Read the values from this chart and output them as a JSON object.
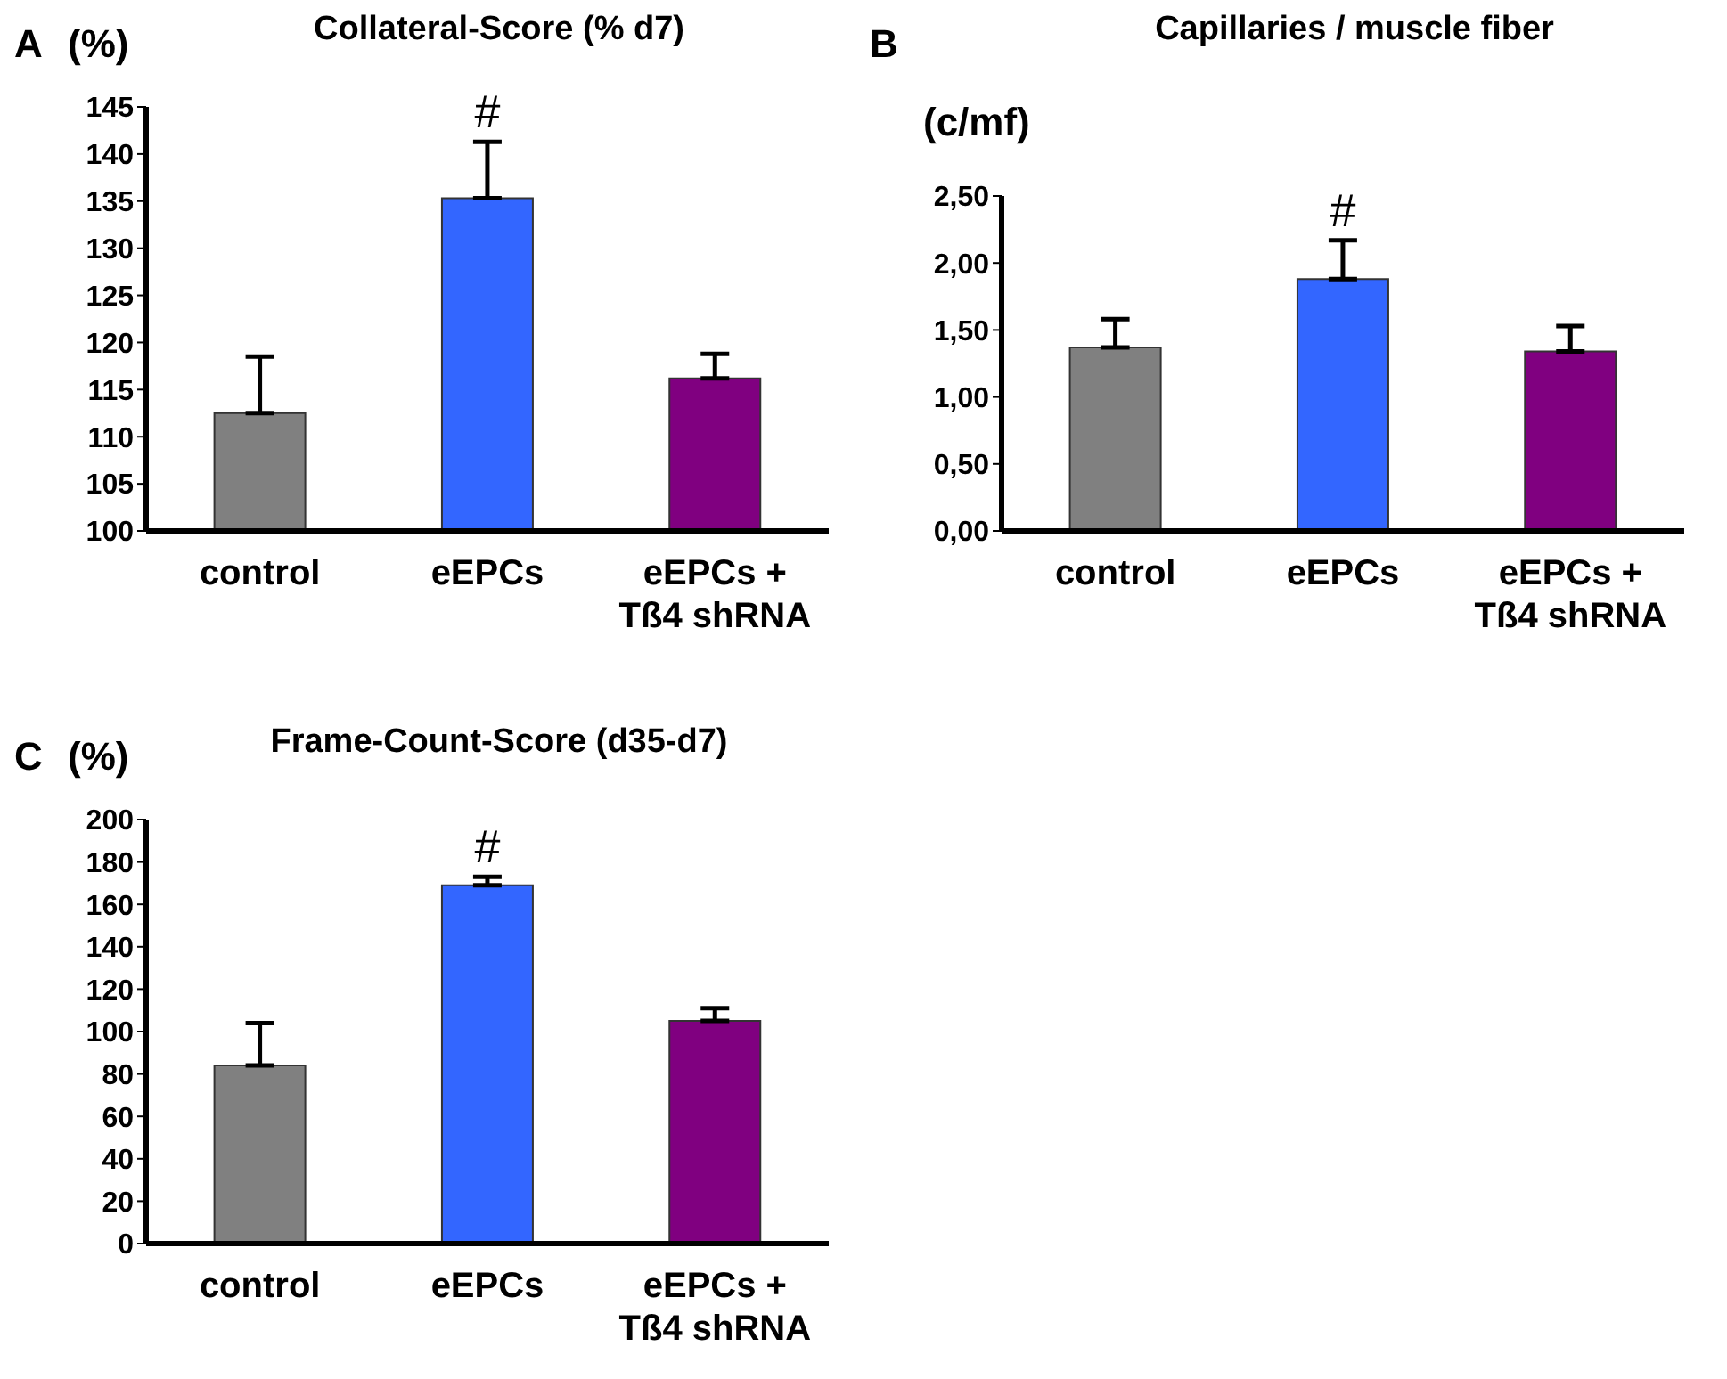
{
  "chart_data": [
    {
      "type": "bar",
      "title": "Collateral-Score (% d7)",
      "ylabel": "(%)",
      "categories": [
        "control",
        "eEPCs",
        "eEPCs + Tß4 shRNA"
      ],
      "values": [
        112.5,
        135.3,
        116.2
      ],
      "errors": [
        6,
        6,
        2.6
      ],
      "colors": [
        "#808080",
        "#3366ff",
        "#800080"
      ],
      "ylim": [
        100,
        145
      ],
      "yticks": [
        100,
        105,
        110,
        115,
        120,
        125,
        130,
        135,
        140,
        145
      ],
      "annotations": [
        "A",
        {
          "text": "#",
          "x": "eEPCs",
          "y": 141.3
        }
      ]
    },
    {
      "type": "bar",
      "title": "Capillaries / muscle fiber",
      "ylabel": "(c/mf)",
      "categories": [
        "control",
        "eEPCs",
        "eEPCs + Tß4 shRNA"
      ],
      "values": [
        1.37,
        1.88,
        1.34
      ],
      "errors": [
        0.21,
        0.29,
        0.19
      ],
      "colors": [
        "#808080",
        "#3366ff",
        "#800080"
      ],
      "ylim": [
        0,
        2.5
      ],
      "yticks": [
        {
          "value": 0,
          "label": "0,00"
        },
        {
          "value": 0.5,
          "label": "0,50"
        },
        {
          "value": 1,
          "label": "1,00"
        },
        {
          "value": 1.5,
          "label": "1,50"
        },
        {
          "value": 2,
          "label": "2,00"
        },
        {
          "value": 2.5,
          "label": "2,50"
        }
      ],
      "annotations": [
        "B",
        {
          "text": "#",
          "x": "eEPCs",
          "y": 2.17
        }
      ]
    },
    {
      "type": "bar",
      "title": "Frame-Count-Score (d35-d7)",
      "ylabel": "(%)",
      "categories": [
        "control",
        "eEPCs",
        "eEPCs + Tß4 shRNA"
      ],
      "values": [
        84,
        169,
        105
      ],
      "errors": [
        20,
        4,
        6
      ],
      "colors": [
        "#808080",
        "#3366ff",
        "#800080"
      ],
      "ylim": [
        0,
        200
      ],
      "yticks": [
        0,
        20,
        40,
        60,
        80,
        100,
        120,
        140,
        160,
        180,
        200
      ],
      "annotations": [
        "C",
        {
          "text": "#",
          "x": "eEPCs",
          "y": 173
        }
      ]
    }
  ]
}
